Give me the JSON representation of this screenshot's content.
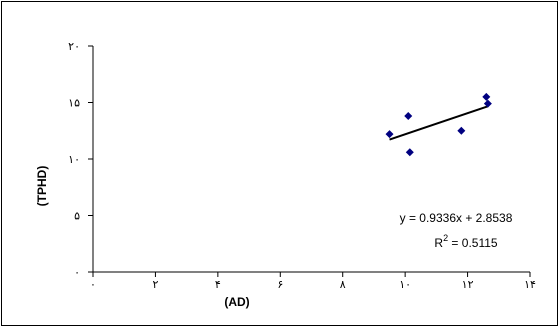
{
  "chart_data": {
    "type": "scatter",
    "xlabel": "(AD)",
    "ylabel": "(TPHD)",
    "xlim": [
      0,
      14
    ],
    "ylim": [
      0,
      20
    ],
    "x_ticks": [
      0,
      2,
      4,
      6,
      8,
      10,
      12,
      14
    ],
    "x_tick_labels": [
      "٠",
      "٢",
      "۴",
      "۶",
      "٨",
      "١٠",
      "١٢",
      "١۴"
    ],
    "y_ticks": [
      0,
      5,
      10,
      15,
      20
    ],
    "y_tick_labels": [
      "٠",
      "۵",
      "١٠",
      "١۵",
      "٢٠"
    ],
    "grid": false,
    "legend": "none",
    "marker_color": "#000080",
    "series": [
      {
        "marker": "diamond",
        "x": [
          9.5,
          10.1,
          10.15,
          11.8,
          12.6,
          12.65
        ],
        "y": [
          12.2,
          13.8,
          10.6,
          12.5,
          15.5,
          14.9
        ]
      }
    ],
    "trendline": {
      "slope": 0.9336,
      "intercept": 2.8538,
      "x_range": [
        9.5,
        12.65
      ]
    },
    "annotations": {
      "equation": "y = 0.9336x + 2.8538",
      "r2_prefix": "R",
      "r2_sup": "2",
      "r2_value": " = 0.5115"
    }
  }
}
